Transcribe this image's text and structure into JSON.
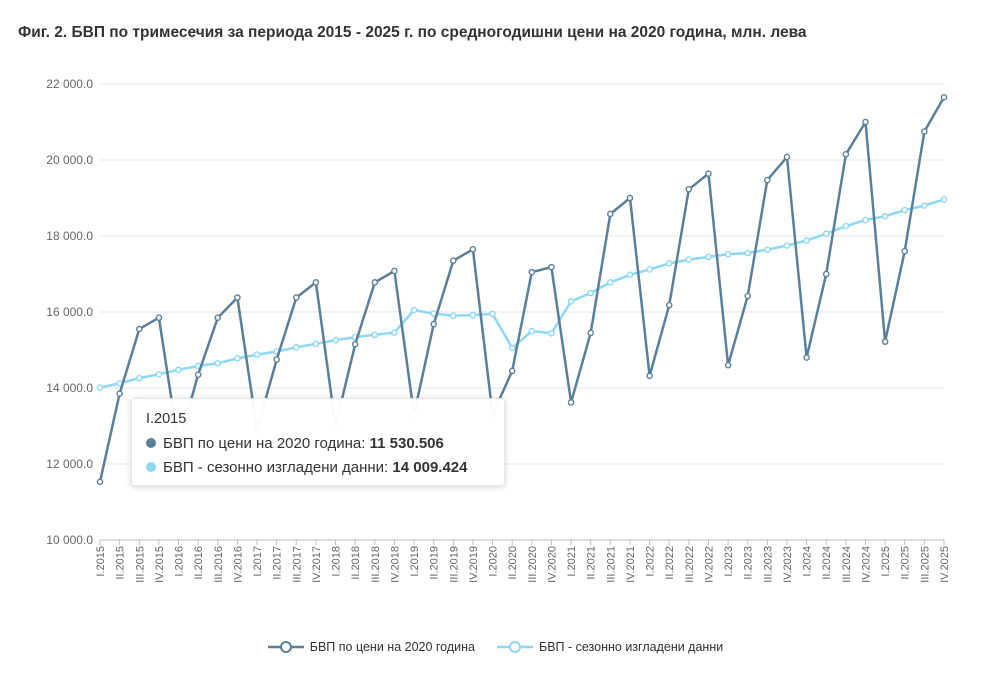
{
  "title": "Фиг. 2. БВП по тримесечия за периода 2015 - 2025 г. по средногодишни цени на 2020 година, млн. лева",
  "colors": {
    "series1": "#5a7f9b",
    "series2": "#8dd8f6",
    "grid": "#e6e6e6",
    "axis": "#bfbfbf",
    "text": "#666666"
  },
  "chart_data": {
    "type": "line",
    "title": "Фиг. 2. БВП по тримесечия за периода 2015 - 2025 г. по средногодишни цени на 2020 година, млн. лева",
    "xlabel": "",
    "ylabel": "",
    "ylim": [
      10000,
      22000
    ],
    "yticks": [
      10000,
      12000,
      14000,
      16000,
      18000,
      20000,
      22000
    ],
    "ytick_labels": [
      "10 000.0",
      "12 000.0",
      "14 000.0",
      "16 000.0",
      "18 000.0",
      "20 000.0",
      "22 000.0"
    ],
    "grid": true,
    "legend_position": "bottom-center",
    "categories": [
      "I.2015",
      "II.2015",
      "III.2015",
      "IV.2015",
      "I.2016",
      "II.2016",
      "III.2016",
      "IV.2016",
      "I.2017",
      "II.2017",
      "III.2017",
      "IV.2017",
      "I.2018",
      "II.2018",
      "III.2018",
      "IV.2018",
      "I.2019",
      "II.2019",
      "III.2019",
      "IV.2019",
      "I.2020",
      "II.2020",
      "III.2020",
      "IV.2020",
      "I.2021",
      "II.2021",
      "III.2021",
      "IV.2021",
      "I.2022",
      "II.2022",
      "III.2022",
      "IV.2022",
      "I.2023",
      "II.2023",
      "III.2023",
      "IV.2023",
      "I.2024",
      "II.2024",
      "III.2024",
      "IV.2024",
      "I.2025",
      "II.2025",
      "III.2025",
      "IV.2025"
    ],
    "series": [
      {
        "name": "БВП  по цени на 2020 година",
        "values": [
          11530.506,
          13850,
          15550,
          15850,
          12500,
          14350,
          15850,
          16380,
          12900,
          14750,
          16380,
          16780,
          13000,
          15150,
          16780,
          17080,
          13300,
          15680,
          17350,
          17650,
          13300,
          14450,
          17050,
          17180,
          13620,
          15450,
          18580,
          19000,
          14320,
          16180,
          19230,
          19640,
          14600,
          16420,
          19470,
          20080,
          14800,
          17000,
          20150,
          21000,
          15220,
          17600,
          20750,
          21650
        ]
      },
      {
        "name": "БВП - сезонно изгладени данни",
        "values": [
          14009.424,
          14120,
          14260,
          14360,
          14480,
          14580,
          14650,
          14780,
          14880,
          14960,
          15070,
          15160,
          15260,
          15340,
          15400,
          15460,
          16050,
          15960,
          15900,
          15920,
          15950,
          15050,
          15500,
          15440,
          16280,
          16500,
          16780,
          16980,
          17120,
          17280,
          17380,
          17450,
          17520,
          17550,
          17640,
          17750,
          17880,
          18060,
          18260,
          18420,
          18520,
          18680,
          18800,
          18960
        ]
      }
    ]
  },
  "tooltip": {
    "header": "I.2015",
    "rows": [
      {
        "label": "БВП по цени на 2020 година: ",
        "value": "11 530.506"
      },
      {
        "label": "БВП - сезонно изгладени данни: ",
        "value": "14 009.424"
      }
    ]
  },
  "legend": {
    "items": [
      "БВП  по цени на 2020 година",
      "БВП - сезонно изгладени данни"
    ]
  }
}
